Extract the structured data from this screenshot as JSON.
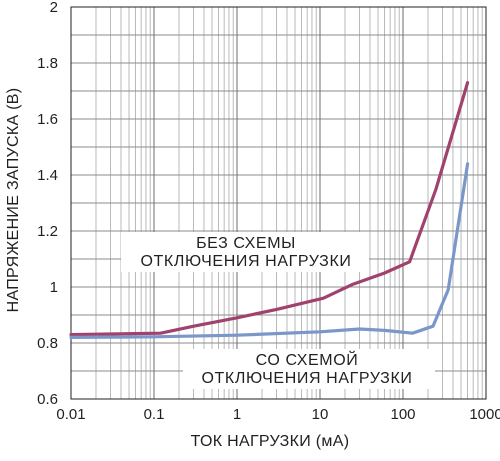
{
  "chart_data": {
    "type": "line",
    "xscale": "log",
    "xlim": [
      0.01,
      1000
    ],
    "ylim": [
      0.6,
      2
    ],
    "grid": true,
    "xlabel": "ТОК НАГРУЗКИ (мА)",
    "ylabel": "НАПРЯЖЕНИЕ ЗАПУСКА (В)",
    "xticks": [
      "0.01",
      "0.1",
      "1",
      "10",
      "100",
      "1000"
    ],
    "yticks": [
      "0.6",
      "0.8",
      "1",
      "1.2",
      "1.4",
      "1.6",
      "1.8",
      "2"
    ],
    "series": [
      {
        "name": "БЕЗ СХЕМЫ ОТКЛЮЧЕНИЯ НАГРУЗКИ",
        "color": "#a0416e",
        "x": [
          0.01,
          0.12,
          0.3,
          1,
          3,
          11,
          25,
          60,
          120,
          250,
          600
        ],
        "y": [
          0.83,
          0.835,
          0.86,
          0.89,
          0.92,
          0.96,
          1.01,
          1.05,
          1.09,
          1.35,
          1.73
        ]
      },
      {
        "name": "СО СХЕМОЙ ОТКЛЮЧЕНИЯ НАГРУЗКИ",
        "color": "#7b96c8",
        "x": [
          0.01,
          0.1,
          1,
          10,
          30,
          60,
          130,
          230,
          350,
          600
        ],
        "y": [
          0.82,
          0.822,
          0.828,
          0.84,
          0.85,
          0.845,
          0.835,
          0.86,
          0.99,
          1.44
        ]
      }
    ],
    "annotations": [
      {
        "lines": [
          "БЕЗ СХЕМЫ",
          "ОТКЛЮЧЕНИЯ НАГРУЗКИ"
        ]
      },
      {
        "lines": [
          "СО СХЕМОЙ",
          "ОТКЛЮЧЕНИЯ НАГРУЗКИ"
        ]
      }
    ]
  }
}
